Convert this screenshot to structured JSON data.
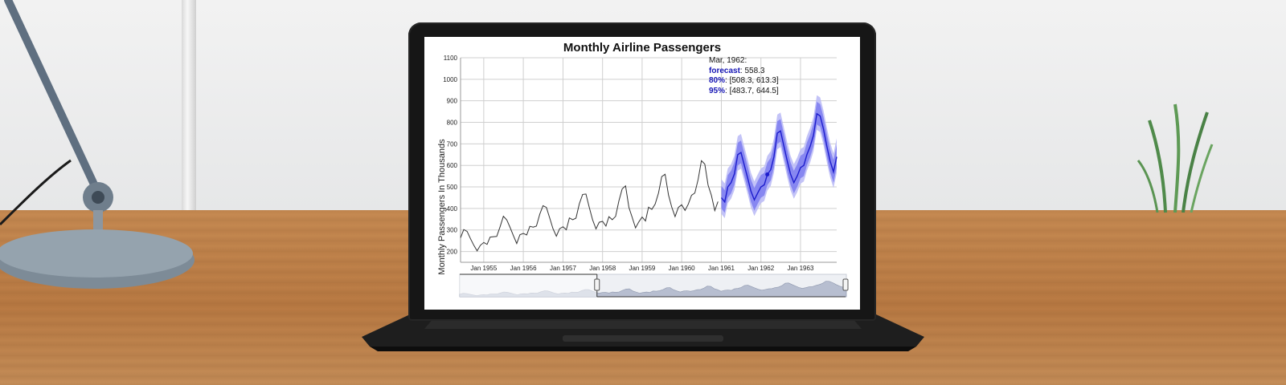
{
  "chart_data": {
    "type": "line",
    "title": "Monthly Airline Passengers",
    "xlabel": "",
    "ylabel": "Monthly Passengers In Thousands",
    "ylim": [
      150,
      1100
    ],
    "y_ticks": [
      200,
      300,
      400,
      500,
      600,
      700,
      800,
      900,
      1000,
      1100
    ],
    "x_tick_labels": [
      "Jan 1955",
      "Jan 1956",
      "Jan 1957",
      "Jan 1958",
      "Jan 1959",
      "Jan 1960",
      "Jan 1961",
      "Jan 1962",
      "Jan 1963"
    ],
    "grid": true,
    "series": [
      {
        "kind": "observed",
        "start": "1954-06",
        "values": [
          264,
          302,
          293,
          259,
          229,
          203,
          229,
          242,
          233,
          267,
          269,
          270,
          315,
          364,
          347,
          312,
          274,
          237,
          278,
          284,
          277,
          317,
          313,
          318,
          374,
          413,
          405,
          355,
          306,
          271,
          306,
          315,
          301,
          356,
          348,
          355,
          422,
          465,
          467,
          404,
          347,
          305,
          336,
          340,
          318,
          362,
          348,
          363,
          435,
          491,
          505,
          404,
          359,
          310,
          337,
          360,
          342,
          406,
          396,
          420,
          472,
          548,
          559,
          463,
          407,
          362,
          405,
          417,
          391,
          419,
          461,
          472,
          535,
          622,
          606,
          508,
          461,
          390,
          432
        ]
      },
      {
        "kind": "forecast",
        "start": "1961-01",
        "values": [
          450,
          430,
          500,
          520,
          560,
          650,
          660,
          600,
          540,
          480,
          440,
          470,
          500,
          510,
          558,
          580,
          640,
          750,
          760,
          690,
          620,
          560,
          520,
          550,
          590,
          600,
          650,
          690,
          740,
          840,
          830,
          770,
          690,
          620,
          570,
          640
        ]
      }
    ],
    "intervals": {
      "series": "forecast",
      "80": {
        "lower_offset": 50,
        "upper_offset": 55
      },
      "95": {
        "lower_offset": 75,
        "upper_offset": 86
      }
    },
    "tooltip": {
      "date": "Mar, 1962:",
      "forecast_label": "forecast",
      "forecast_value": "558.3",
      "ci80_label": "80%",
      "ci80_value": "[508.3, 613.3]",
      "ci95_label": "95%",
      "ci95_value": "[483.7, 644.5]"
    },
    "navigator": {
      "selected_from": "1954-06",
      "selected_to": "1963-12"
    }
  },
  "colors": {
    "observed": "#333333",
    "forecast": "#1c1ccc",
    "ci80": "#7c7cf0",
    "ci95": "#b9b9f6",
    "grid": "#cfcfcf"
  }
}
